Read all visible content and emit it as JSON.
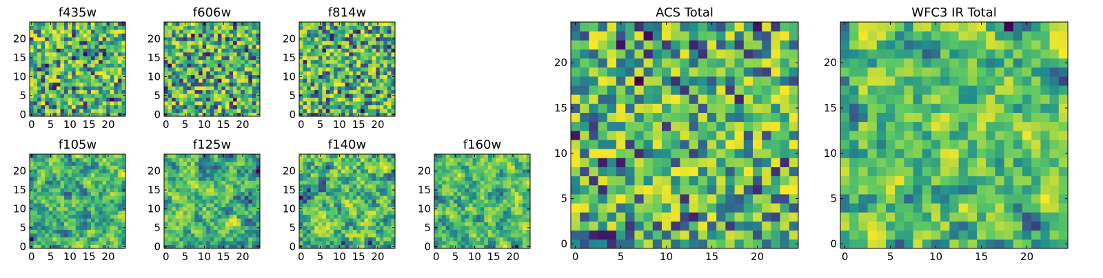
{
  "figure": {
    "colormap": "viridis",
    "colors": [
      "#440154",
      "#3b528b",
      "#21908d",
      "#5dc963",
      "#fde725"
    ]
  },
  "chart_data": [
    {
      "type": "heatmap",
      "title": "f435w",
      "grid_size": 25,
      "seed": 11,
      "smooth": 0,
      "xticks": [
        0,
        5,
        10,
        15,
        20
      ],
      "yticks": [
        0,
        5,
        10,
        15,
        20
      ],
      "xlim": [
        -0.5,
        24.5
      ],
      "ylim": [
        -0.5,
        24.5
      ]
    },
    {
      "type": "heatmap",
      "title": "f606w",
      "grid_size": 25,
      "seed": 23,
      "smooth": 0,
      "xticks": [
        0,
        5,
        10,
        15,
        20
      ],
      "yticks": [
        0,
        5,
        10,
        15,
        20
      ],
      "xlim": [
        -0.5,
        24.5
      ],
      "ylim": [
        -0.5,
        24.5
      ]
    },
    {
      "type": "heatmap",
      "title": "f814w",
      "grid_size": 25,
      "seed": 37,
      "smooth": 0,
      "xticks": [
        0,
        5,
        10,
        15,
        20
      ],
      "yticks": [
        0,
        5,
        10,
        15,
        20
      ],
      "xlim": [
        -0.5,
        24.5
      ],
      "ylim": [
        -0.5,
        24.5
      ]
    },
    {
      "type": "heatmap",
      "title": "f105w",
      "grid_size": 25,
      "seed": 41,
      "smooth": 1,
      "xticks": [
        0,
        5,
        10,
        15,
        20
      ],
      "yticks": [
        0,
        5,
        10,
        15,
        20
      ],
      "xlim": [
        -0.5,
        24.5
      ],
      "ylim": [
        -0.5,
        24.5
      ]
    },
    {
      "type": "heatmap",
      "title": "f125w",
      "grid_size": 25,
      "seed": 53,
      "smooth": 1,
      "xticks": [
        0,
        5,
        10,
        15,
        20
      ],
      "yticks": [
        0,
        5,
        10,
        15,
        20
      ],
      "xlim": [
        -0.5,
        24.5
      ],
      "ylim": [
        -0.5,
        24.5
      ]
    },
    {
      "type": "heatmap",
      "title": "f140w",
      "grid_size": 25,
      "seed": 67,
      "smooth": 1,
      "xticks": [
        0,
        5,
        10,
        15,
        20
      ],
      "yticks": [
        0,
        5,
        10,
        15,
        20
      ],
      "xlim": [
        -0.5,
        24.5
      ],
      "ylim": [
        -0.5,
        24.5
      ]
    },
    {
      "type": "heatmap",
      "title": "f160w",
      "grid_size": 25,
      "seed": 79,
      "smooth": 1,
      "xticks": [
        0,
        5,
        10,
        15,
        20
      ],
      "yticks": [
        0,
        5,
        10,
        15,
        20
      ],
      "xlim": [
        -0.5,
        24.5
      ],
      "ylim": [
        -0.5,
        24.5
      ]
    },
    {
      "type": "heatmap",
      "title": "ACS Total",
      "grid_size": 25,
      "seed": 97,
      "smooth": 0,
      "xticks": [
        0,
        5,
        10,
        15,
        20
      ],
      "yticks": [
        0,
        5,
        10,
        15,
        20
      ],
      "xlim": [
        -0.5,
        24.5
      ],
      "ylim": [
        -0.5,
        24.5
      ]
    },
    {
      "type": "heatmap",
      "title": "WFC3 IR Total",
      "grid_size": 25,
      "seed": 113,
      "smooth": 1,
      "xticks": [
        0,
        5,
        10,
        15,
        20
      ],
      "yticks": [
        0,
        5,
        10,
        15,
        20
      ],
      "xlim": [
        -0.5,
        24.5
      ],
      "ylim": [
        -0.5,
        24.5
      ]
    }
  ]
}
